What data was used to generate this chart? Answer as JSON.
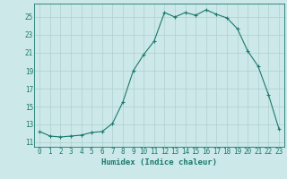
{
  "x": [
    0,
    1,
    2,
    3,
    4,
    5,
    6,
    7,
    8,
    9,
    10,
    11,
    12,
    13,
    14,
    15,
    16,
    17,
    18,
    19,
    20,
    21,
    22,
    23
  ],
  "y": [
    12.2,
    11.7,
    11.6,
    11.7,
    11.8,
    12.1,
    12.2,
    13.1,
    15.5,
    19.0,
    20.8,
    22.3,
    25.5,
    25.0,
    25.5,
    25.2,
    25.8,
    25.3,
    24.9,
    23.7,
    21.2,
    19.5,
    16.3,
    12.5
  ],
  "line_color": "#1a7a6e",
  "marker": "+",
  "marker_size": 3,
  "marker_linewidth": 0.8,
  "bg_color": "#cce8e8",
  "grid_color": "#aed0d0",
  "xlabel": "Humidex (Indice chaleur)",
  "xlim": [
    -0.5,
    23.5
  ],
  "ylim": [
    10.5,
    26.5
  ],
  "xtick_labels": [
    "0",
    "1",
    "2",
    "3",
    "4",
    "5",
    "6",
    "7",
    "8",
    "9",
    "10",
    "11",
    "12",
    "13",
    "14",
    "15",
    "16",
    "17",
    "18",
    "19",
    "20",
    "21",
    "22",
    "23"
  ],
  "yticks": [
    11,
    13,
    15,
    17,
    19,
    21,
    23,
    25
  ],
  "xlabel_fontsize": 6.5,
  "tick_fontsize": 5.5
}
